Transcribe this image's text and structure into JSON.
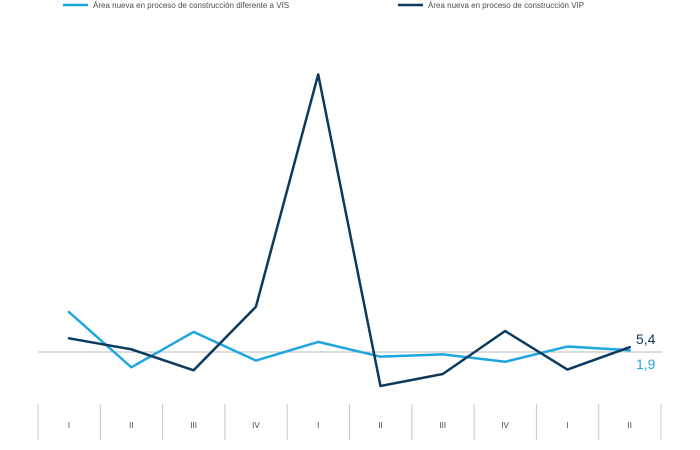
{
  "chart_data": {
    "type": "line",
    "title": "",
    "xlabel": "",
    "ylabel": "",
    "categories": [
      "I",
      "II",
      "III",
      "IV",
      "I",
      "II",
      "III",
      "IV",
      "I",
      "II"
    ],
    "series": [
      {
        "name": "Área nueva en proceso de construcción diferente a VIS",
        "color": "#1ea6e0",
        "values": [
          45.2,
          -17.3,
          22.8,
          -9.8,
          11.4,
          -5.3,
          -2.7,
          -11.1,
          6.2,
          1.9
        ]
      },
      {
        "name": "Área nueva en proceso de construcción VIP",
        "color": "#0b3a5e",
        "values": [
          15.5,
          3.1,
          -20.8,
          51.3,
          314.7,
          -38.5,
          -24.9,
          23.8,
          -19.9,
          5.4
        ]
      }
    ],
    "end_labels": [
      "1,9",
      "5,4"
    ],
    "legend_position": "top",
    "grid": false,
    "ylim": [
      -60,
      330
    ]
  }
}
